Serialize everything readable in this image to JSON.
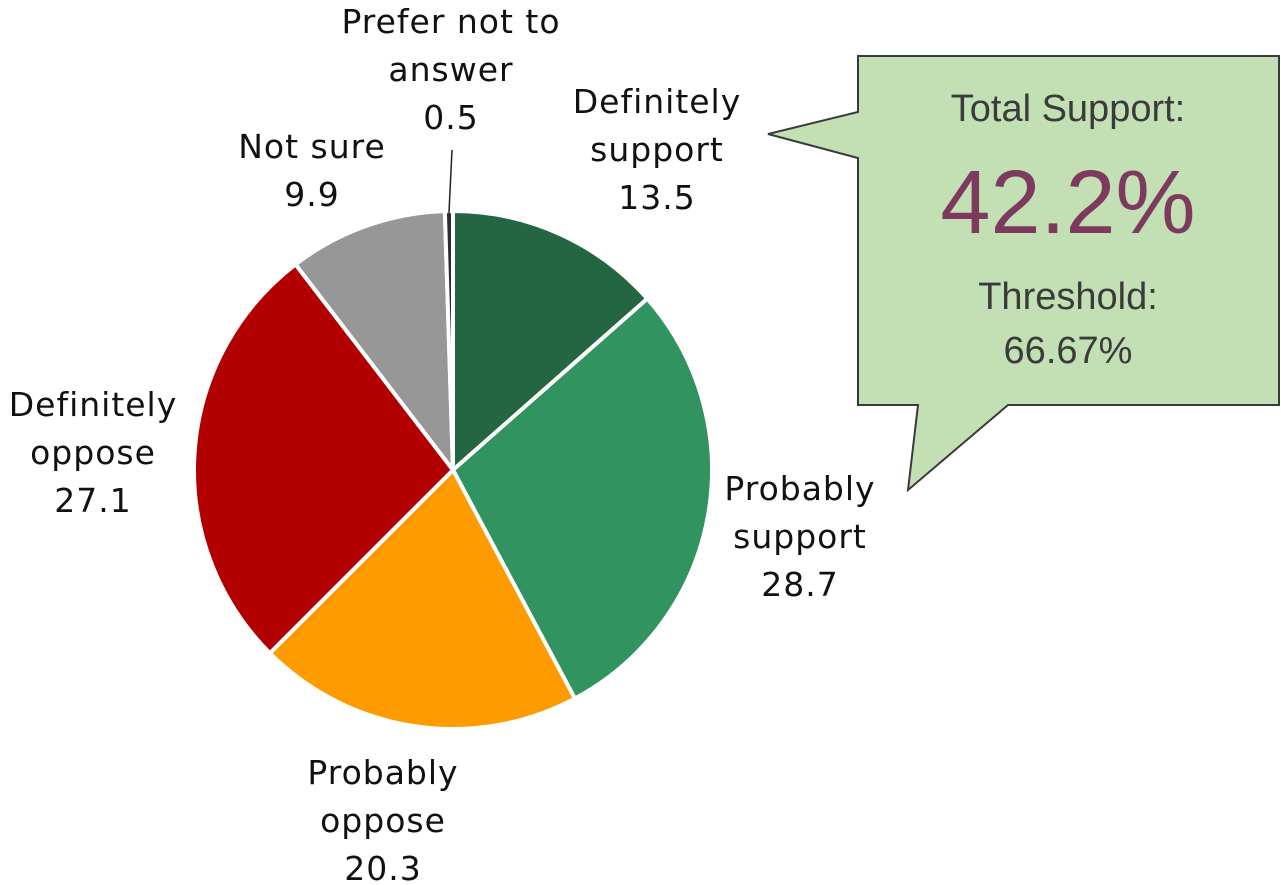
{
  "chart_data": {
    "type": "pie",
    "slices": [
      {
        "lines": [
          "Definitely",
          "support",
          "13.5"
        ],
        "label": "Definitely support",
        "value": 13.5,
        "color": "#236641"
      },
      {
        "lines": [
          "Probably",
          "support",
          "28.7"
        ],
        "label": "Probably support",
        "value": 28.7,
        "color": "#31935f"
      },
      {
        "lines": [
          "Probably",
          "oppose",
          "20.3"
        ],
        "label": "Probably oppose",
        "value": 20.3,
        "color": "#fe9b00"
      },
      {
        "lines": [
          "Definitely",
          "oppose",
          "27.1"
        ],
        "label": "Definitely oppose",
        "value": 27.1,
        "color": "#b20000"
      },
      {
        "lines": [
          "Not sure",
          "9.9"
        ],
        "label": "Not sure",
        "value": 9.9,
        "color": "#979797"
      },
      {
        "lines": [
          "Prefer not to",
          "answer",
          "0.5"
        ],
        "label": "Prefer not to answer",
        "value": 0.5,
        "color": "#2b2b2b"
      }
    ]
  },
  "callout": {
    "heading": "Total Support:",
    "value": "42.2%",
    "threshold_label": "Threshold:",
    "threshold_value": "66.67%",
    "fill": "#c3e0b4",
    "value_color": "#7d3a5e"
  }
}
